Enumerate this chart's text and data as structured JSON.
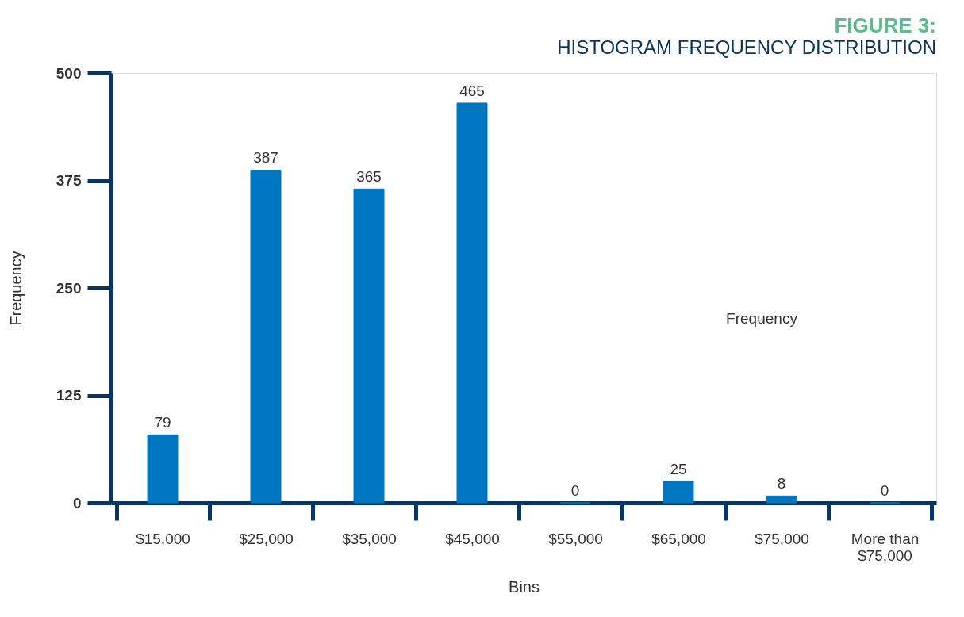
{
  "chart_data": {
    "type": "bar",
    "title": "FIGURE 3:",
    "subtitle": "HISTOGRAM FREQUENCY DISTRIBUTION",
    "xlabel": "Bins",
    "ylabel": "Frequency",
    "categories": [
      "$15,000",
      "$25,000",
      "$35,000",
      "$45,000",
      "$55,000",
      "$65,000",
      "$75,000",
      "More than $75,000"
    ],
    "values": [
      79,
      387,
      365,
      465,
      0,
      25,
      8,
      0
    ],
    "color": "#0077c0",
    "ylim": [
      0,
      500
    ],
    "yticks": [
      0,
      125,
      250,
      375,
      500
    ],
    "grid": false,
    "data_labels": true,
    "annotations": [
      "Frequency"
    ]
  }
}
